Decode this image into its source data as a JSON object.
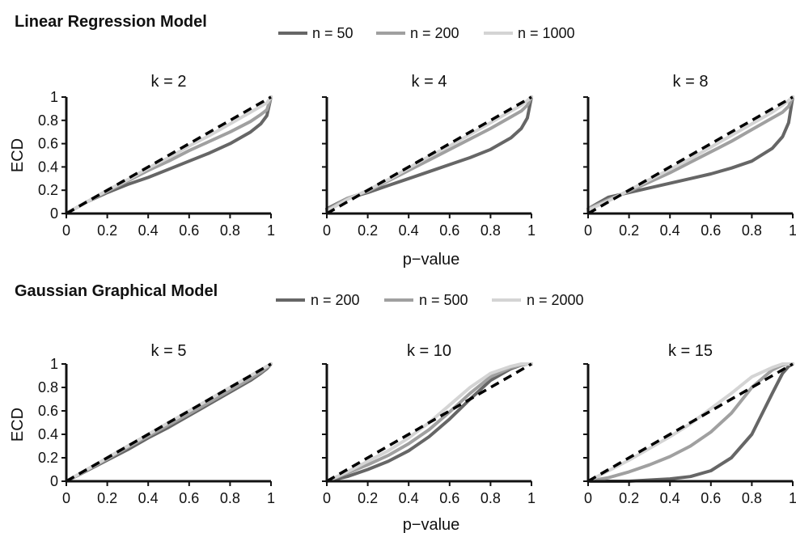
{
  "colors": {
    "series_dark": "#666666",
    "series_mid": "#a0a0a0",
    "series_light": "#d4d4d4",
    "reference": "#000000",
    "axis": "#111111"
  },
  "x_ticks": [
    "0",
    "0.2",
    "0.4",
    "0.6",
    "0.8",
    "1"
  ],
  "y_ticks": [
    "0",
    "0.2",
    "0.4",
    "0.6",
    "0.8",
    "1"
  ],
  "chart_data": [
    {
      "section_title": "Linear Regression Model",
      "type": "line",
      "legend": [
        "n = 50",
        "n = 200",
        "n = 1000"
      ],
      "legend_placement": "top",
      "xlabel": "p−value",
      "ylabel": "ECD",
      "xlim": [
        0,
        1
      ],
      "ylim": [
        0,
        1
      ],
      "grid": false,
      "x": [
        0,
        0.1,
        0.2,
        0.3,
        0.4,
        0.5,
        0.6,
        0.7,
        0.8,
        0.9,
        0.95,
        0.98,
        1
      ],
      "panels": [
        {
          "title": "k = 2",
          "series": [
            {
              "values": [
                0,
                0.1,
                0.18,
                0.25,
                0.31,
                0.38,
                0.45,
                0.52,
                0.6,
                0.7,
                0.77,
                0.84,
                1
              ]
            },
            {
              "values": [
                0,
                0.1,
                0.19,
                0.28,
                0.37,
                0.45,
                0.54,
                0.62,
                0.7,
                0.79,
                0.85,
                0.89,
                1
              ]
            },
            {
              "values": [
                0,
                0.1,
                0.2,
                0.29,
                0.39,
                0.48,
                0.58,
                0.67,
                0.77,
                0.87,
                0.92,
                0.95,
                1
              ]
            }
          ]
        },
        {
          "title": "k = 4",
          "series": [
            {
              "values": [
                0.04,
                0.13,
                0.18,
                0.24,
                0.3,
                0.36,
                0.42,
                0.48,
                0.55,
                0.65,
                0.73,
                0.82,
                1
              ]
            },
            {
              "values": [
                0.03,
                0.13,
                0.19,
                0.28,
                0.37,
                0.46,
                0.55,
                0.64,
                0.73,
                0.83,
                0.88,
                0.93,
                1
              ]
            },
            {
              "values": [
                0.02,
                0.12,
                0.2,
                0.29,
                0.39,
                0.49,
                0.58,
                0.68,
                0.78,
                0.88,
                0.93,
                0.97,
                1
              ]
            }
          ]
        },
        {
          "title": "k = 8",
          "series": [
            {
              "values": [
                0.04,
                0.14,
                0.18,
                0.22,
                0.26,
                0.3,
                0.34,
                0.39,
                0.45,
                0.56,
                0.66,
                0.78,
                1
              ]
            },
            {
              "values": [
                0.04,
                0.12,
                0.19,
                0.27,
                0.35,
                0.44,
                0.53,
                0.62,
                0.72,
                0.82,
                0.87,
                0.92,
                1
              ]
            },
            {
              "values": [
                0.03,
                0.11,
                0.2,
                0.29,
                0.38,
                0.47,
                0.57,
                0.67,
                0.77,
                0.87,
                0.93,
                0.97,
                1
              ]
            }
          ]
        }
      ]
    },
    {
      "section_title": "Gaussian Graphical Model",
      "type": "line",
      "legend": [
        "n = 200",
        "n = 500",
        "n = 2000"
      ],
      "legend_placement": "top",
      "xlabel": "p−value",
      "ylabel": "ECD",
      "xlim": [
        0,
        1
      ],
      "ylim": [
        0,
        1
      ],
      "grid": false,
      "x": [
        0,
        0.1,
        0.2,
        0.3,
        0.4,
        0.5,
        0.6,
        0.7,
        0.8,
        0.9,
        0.95,
        0.98,
        1
      ],
      "panels": [
        {
          "title": "k = 5",
          "series": [
            {
              "values": [
                0,
                0.09,
                0.18,
                0.27,
                0.37,
                0.46,
                0.56,
                0.66,
                0.76,
                0.86,
                0.92,
                0.96,
                1
              ]
            },
            {
              "values": [
                0,
                0.095,
                0.19,
                0.29,
                0.385,
                0.48,
                0.575,
                0.675,
                0.775,
                0.875,
                0.93,
                0.97,
                1
              ]
            },
            {
              "values": [
                0,
                0.1,
                0.2,
                0.3,
                0.4,
                0.5,
                0.6,
                0.7,
                0.8,
                0.9,
                0.95,
                0.98,
                1
              ]
            }
          ]
        },
        {
          "title": "k = 10",
          "series": [
            {
              "values": [
                0,
                0.04,
                0.1,
                0.17,
                0.26,
                0.38,
                0.53,
                0.7,
                0.86,
                0.96,
                0.99,
                1,
                1
              ]
            },
            {
              "values": [
                0,
                0.07,
                0.14,
                0.22,
                0.32,
                0.44,
                0.59,
                0.75,
                0.89,
                0.97,
                0.99,
                1,
                1
              ]
            },
            {
              "values": [
                0,
                0.08,
                0.17,
                0.26,
                0.37,
                0.5,
                0.65,
                0.8,
                0.92,
                0.98,
                1,
                1,
                1
              ]
            }
          ]
        },
        {
          "title": "k = 15",
          "series": [
            {
              "values": [
                0,
                0,
                0,
                0.01,
                0.02,
                0.04,
                0.09,
                0.2,
                0.4,
                0.75,
                0.92,
                0.98,
                1
              ]
            },
            {
              "values": [
                0,
                0.03,
                0.08,
                0.14,
                0.21,
                0.3,
                0.42,
                0.58,
                0.8,
                0.95,
                0.99,
                1,
                1
              ]
            },
            {
              "values": [
                0,
                0.09,
                0.18,
                0.28,
                0.38,
                0.49,
                0.62,
                0.75,
                0.89,
                0.97,
                1,
                1,
                1
              ]
            }
          ]
        }
      ]
    }
  ]
}
